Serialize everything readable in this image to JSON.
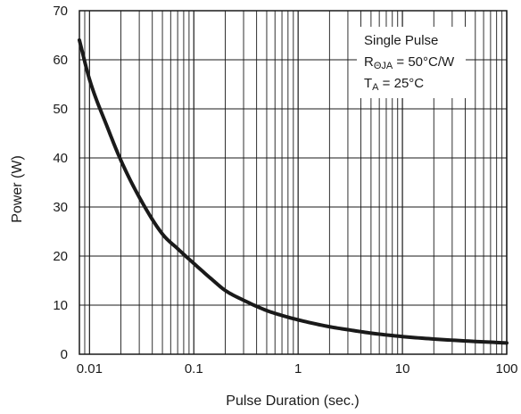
{
  "chart_data": {
    "type": "line",
    "title": "",
    "xlabel": "Pulse Duration (sec.)",
    "ylabel": "Power (W)",
    "x_scale": "log",
    "xlim": [
      0.008,
      100
    ],
    "ylim": [
      0,
      70
    ],
    "grid": true,
    "x_ticks": [
      0.01,
      0.1,
      1,
      10,
      100
    ],
    "x_tick_labels": [
      "0.01",
      "0.1",
      "1",
      "10",
      "100"
    ],
    "y_ticks": [
      0,
      10,
      20,
      30,
      40,
      50,
      60,
      70
    ],
    "y_tick_labels": [
      "0",
      "10",
      "20",
      "30",
      "40",
      "50",
      "60",
      "70"
    ],
    "annotation": {
      "line1": "Single Pulse",
      "line2_main": "R",
      "line2_sub": "ΘJA",
      "line2_rest": " = 50°C/W",
      "line3_main": "T",
      "line3_sub": "A",
      "line3_rest": " = 25°C",
      "position": "top-right"
    },
    "series": [
      {
        "x": [
          0.008,
          0.01,
          0.015,
          0.02,
          0.03,
          0.05,
          0.07,
          0.1,
          0.15,
          0.2,
          0.3,
          0.5,
          0.7,
          1,
          2,
          3,
          5,
          10,
          20,
          50,
          100
        ],
        "y": [
          64,
          56,
          46,
          39.5,
          32,
          24.5,
          21.5,
          18.5,
          15.2,
          13,
          11,
          8.9,
          7.9,
          7,
          5.6,
          5,
          4.3,
          3.6,
          3.1,
          2.6,
          2.3
        ]
      }
    ]
  }
}
